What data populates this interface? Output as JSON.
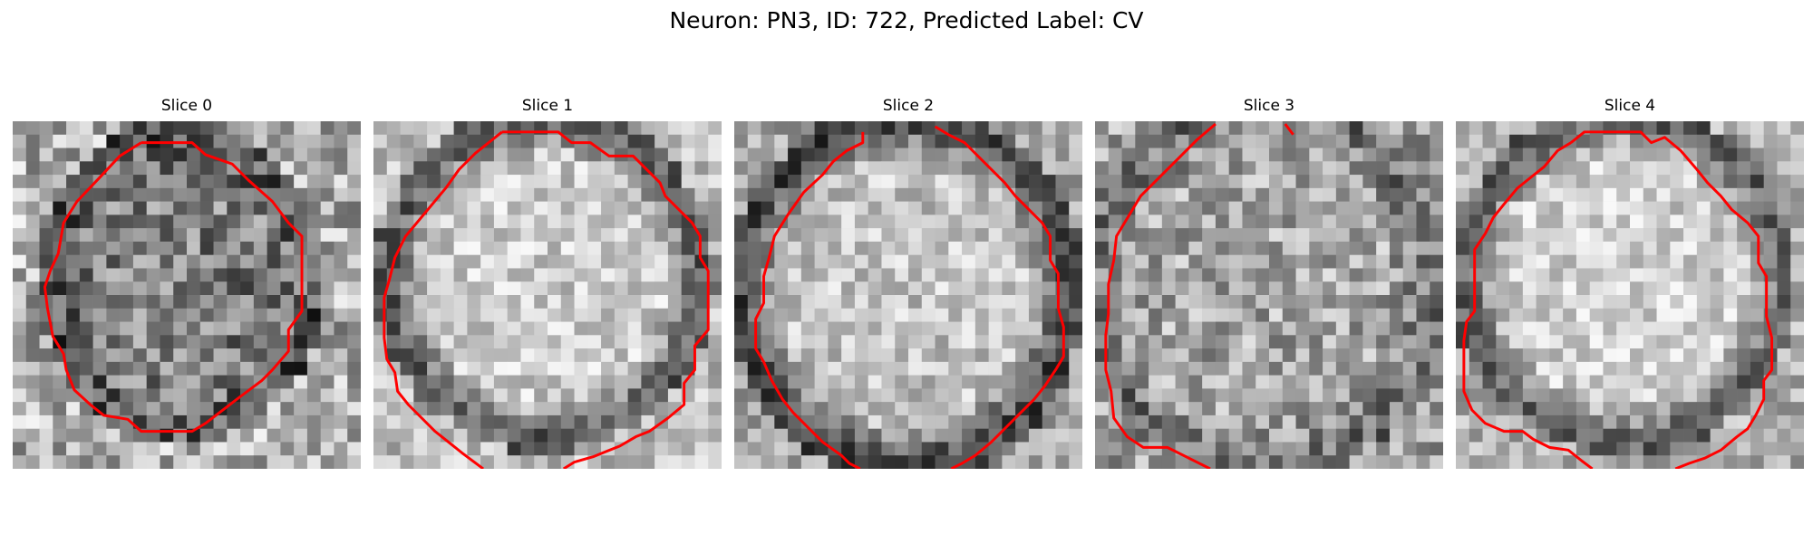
{
  "figure": {
    "title": "Neuron: PN3, ID: 722, Predicted Label: CV",
    "contour_color": "#ff0000",
    "colormap": "grayscale"
  },
  "panels": [
    {
      "title": "Slice 0",
      "image_description": "grayscale pixelated microscopy patch with dark cell membrane ring and red segmentation outline"
    },
    {
      "title": "Slice 1",
      "image_description": "grayscale pixelated microscopy patch with bright cell interior, dark ring and red segmentation outline"
    },
    {
      "title": "Slice 2",
      "image_description": "grayscale pixelated microscopy patch with bright cell interior, dark ring and red segmentation outline"
    },
    {
      "title": "Slice 3",
      "image_description": "grayscale pixelated microscopy patch with noisy cell interior and red segmentation outline"
    },
    {
      "title": "Slice 4",
      "image_description": "grayscale pixelated microscopy patch with bright cell interior, dark ring and red segmentation outline"
    }
  ]
}
